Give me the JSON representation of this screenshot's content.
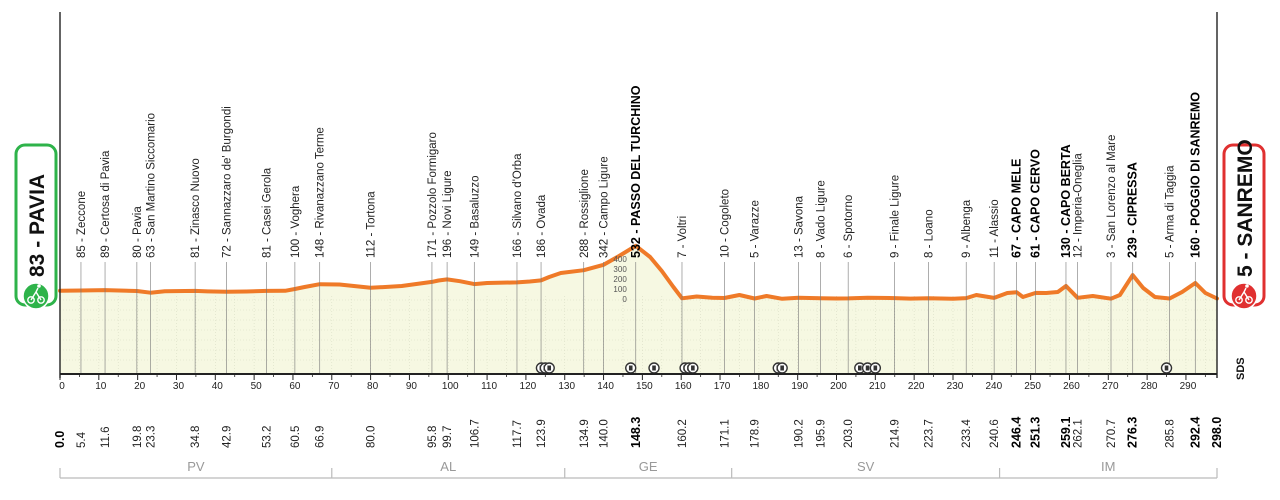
{
  "chart_data": {
    "type": "area",
    "title": "",
    "xlabel": "",
    "ylabel": "",
    "xlim": [
      0,
      298
    ],
    "colors": {
      "line": "#ef7a28",
      "fill": "#f6f8e2",
      "start": "#2eb34a",
      "finish": "#e03030"
    },
    "profile": [
      [
        0,
        83
      ],
      [
        5.4,
        85
      ],
      [
        11.6,
        89
      ],
      [
        19.8,
        80
      ],
      [
        23.3,
        63
      ],
      [
        27,
        78
      ],
      [
        34.8,
        81
      ],
      [
        38,
        76
      ],
      [
        42.9,
        72
      ],
      [
        48,
        75
      ],
      [
        53.2,
        81
      ],
      [
        58,
        82
      ],
      [
        60.5,
        100
      ],
      [
        63,
        120
      ],
      [
        66.9,
        148
      ],
      [
        72,
        145
      ],
      [
        80,
        112
      ],
      [
        88,
        130
      ],
      [
        95.8,
        171
      ],
      [
        97.5,
        185
      ],
      [
        99.7,
        196
      ],
      [
        103,
        178
      ],
      [
        106.7,
        149
      ],
      [
        110,
        160
      ],
      [
        117.7,
        166
      ],
      [
        121,
        175
      ],
      [
        123.9,
        186
      ],
      [
        126,
        220
      ],
      [
        129,
        260
      ],
      [
        134.9,
        288
      ],
      [
        140,
        342
      ],
      [
        144,
        430
      ],
      [
        148.3,
        532
      ],
      [
        152,
        420
      ],
      [
        155,
        280
      ],
      [
        158,
        120
      ],
      [
        160.2,
        7
      ],
      [
        164,
        25
      ],
      [
        168,
        12
      ],
      [
        171.1,
        10
      ],
      [
        175,
        40
      ],
      [
        178.9,
        5
      ],
      [
        182,
        30
      ],
      [
        186,
        2
      ],
      [
        190.2,
        13
      ],
      [
        195.9,
        8
      ],
      [
        200,
        5
      ],
      [
        203,
        6
      ],
      [
        208,
        12
      ],
      [
        214.9,
        9
      ],
      [
        219,
        4
      ],
      [
        223.7,
        8
      ],
      [
        230,
        3
      ],
      [
        233.4,
        9
      ],
      [
        236,
        40
      ],
      [
        240.6,
        11
      ],
      [
        244,
        60
      ],
      [
        246.4,
        67
      ],
      [
        248,
        20
      ],
      [
        251.3,
        61
      ],
      [
        254,
        60
      ],
      [
        257,
        70
      ],
      [
        259.1,
        130
      ],
      [
        262.1,
        12
      ],
      [
        266,
        30
      ],
      [
        270.7,
        3
      ],
      [
        273,
        40
      ],
      [
        276.3,
        239
      ],
      [
        279,
        110
      ],
      [
        282,
        20
      ],
      [
        285.8,
        5
      ],
      [
        289,
        70
      ],
      [
        292.4,
        160
      ],
      [
        295,
        60
      ],
      [
        298,
        5
      ]
    ],
    "start": {
      "label": "83 - PAVIA"
    },
    "finish": {
      "label": "5 - SANREMO"
    },
    "places": [
      {
        "km": 5.4,
        "label": "85 - Zeccone"
      },
      {
        "km": 11.6,
        "label": "89 - Certosa di Pavia"
      },
      {
        "km": 19.8,
        "label": "80 - Pavia"
      },
      {
        "km": 23.3,
        "label": "63 - San Martino Siccomario"
      },
      {
        "km": 34.8,
        "label": "81 - Zinasco Nuovo"
      },
      {
        "km": 42.9,
        "label": "72 - Sannazzaro de' Burgondi"
      },
      {
        "km": 53.2,
        "label": "81 - Casei Gerola"
      },
      {
        "km": 60.5,
        "label": "100 - Voghera"
      },
      {
        "km": 66.9,
        "label": "148 - Rivanazzano Terme"
      },
      {
        "km": 80.0,
        "label": "112 - Tortona"
      },
      {
        "km": 95.8,
        "label": "171 - Pozzolo Formigaro"
      },
      {
        "km": 99.7,
        "label": "196 - Novi Ligure"
      },
      {
        "km": 106.7,
        "label": "149 - Basaluzzo"
      },
      {
        "km": 117.7,
        "label": "166 - Silvano d'Orba"
      },
      {
        "km": 123.9,
        "label": "186 - Ovada"
      },
      {
        "km": 134.9,
        "label": "288 - Rossiglione"
      },
      {
        "km": 140.0,
        "label": "342 - Campo Ligure"
      },
      {
        "km": 148.3,
        "label": "532 - PASSO DEL TURCHINO",
        "summit": true
      },
      {
        "km": 160.2,
        "label": "7 - Voltri"
      },
      {
        "km": 171.1,
        "label": "10 - Cogoleto"
      },
      {
        "km": 178.9,
        "label": "5 - Varazze"
      },
      {
        "km": 190.2,
        "label": "13 - Savona"
      },
      {
        "km": 195.9,
        "label": "8 - Vado Ligure"
      },
      {
        "km": 203.0,
        "label": "6 - Spotorno"
      },
      {
        "km": 214.9,
        "label": "9 - Finale Ligure"
      },
      {
        "km": 223.7,
        "label": "8 - Loano"
      },
      {
        "km": 233.4,
        "label": "9 - Albenga"
      },
      {
        "km": 240.6,
        "label": "11 - Alassio"
      },
      {
        "km": 246.4,
        "label": "67 - CAPO MELE",
        "summit": true
      },
      {
        "km": 251.3,
        "label": "61 - CAPO CERVO",
        "summit": true
      },
      {
        "km": 259.1,
        "label": "130 - CAPO BERTA",
        "summit": true
      },
      {
        "km": 262.1,
        "label": "12 - Imperia-Oneglia"
      },
      {
        "km": 270.7,
        "label": "3 - San Lorenzo al Mare"
      },
      {
        "km": 276.3,
        "label": "239 - CIPRESSA",
        "summit": true
      },
      {
        "km": 285.8,
        "label": "5 - Arma di Taggia"
      },
      {
        "km": 292.4,
        "label": "160 - POGGIO DI SANREMO",
        "summit": true
      }
    ],
    "km_labels": [
      {
        "km": 0,
        "label": "0.0",
        "bold": true
      },
      {
        "km": 5.4,
        "label": "5.4"
      },
      {
        "km": 11.6,
        "label": "11.6"
      },
      {
        "km": 19.8,
        "label": "19.8"
      },
      {
        "km": 23.3,
        "label": "23.3"
      },
      {
        "km": 34.8,
        "label": "34.8"
      },
      {
        "km": 42.9,
        "label": "42.9"
      },
      {
        "km": 53.2,
        "label": "53.2"
      },
      {
        "km": 60.5,
        "label": "60.5"
      },
      {
        "km": 66.9,
        "label": "66.9"
      },
      {
        "km": 80.0,
        "label": "80.0"
      },
      {
        "km": 95.8,
        "label": "95.8"
      },
      {
        "km": 99.7,
        "label": "99.7"
      },
      {
        "km": 106.7,
        "label": "106.7"
      },
      {
        "km": 117.7,
        "label": "117.7"
      },
      {
        "km": 123.9,
        "label": "123.9"
      },
      {
        "km": 134.9,
        "label": "134.9"
      },
      {
        "km": 140.0,
        "label": "140.0"
      },
      {
        "km": 148.3,
        "label": "148.3",
        "bold": true
      },
      {
        "km": 160.2,
        "label": "160.2"
      },
      {
        "km": 171.1,
        "label": "171.1"
      },
      {
        "km": 178.9,
        "label": "178.9"
      },
      {
        "km": 190.2,
        "label": "190.2"
      },
      {
        "km": 195.9,
        "label": "195.9"
      },
      {
        "km": 203.0,
        "label": "203.0"
      },
      {
        "km": 214.9,
        "label": "214.9"
      },
      {
        "km": 223.7,
        "label": "223.7"
      },
      {
        "km": 233.4,
        "label": "233.4"
      },
      {
        "km": 240.6,
        "label": "240.6"
      },
      {
        "km": 246.4,
        "label": "246.4",
        "bold": true
      },
      {
        "km": 251.3,
        "label": "251.3",
        "bold": true
      },
      {
        "km": 259.1,
        "label": "259.1",
        "bold": true
      },
      {
        "km": 262.1,
        "label": "262.1"
      },
      {
        "km": 270.7,
        "label": "270.7"
      },
      {
        "km": 276.3,
        "label": "276.3",
        "bold": true
      },
      {
        "km": 285.8,
        "label": "285.8"
      },
      {
        "km": 292.4,
        "label": "292.4",
        "bold": true
      },
      {
        "km": 298.0,
        "label": "298.0",
        "bold": true
      }
    ],
    "axis_ticks": [
      0,
      10,
      20,
      30,
      40,
      50,
      60,
      70,
      80,
      90,
      100,
      110,
      120,
      130,
      140,
      150,
      160,
      170,
      180,
      190,
      200,
      210,
      220,
      230,
      240,
      250,
      260,
      270,
      280,
      290
    ],
    "elevation_scale": [
      "400",
      "300",
      "200",
      "100",
      "0"
    ],
    "provinces": [
      {
        "label": "PV",
        "from": 0,
        "to": 70
      },
      {
        "label": "AL",
        "from": 70,
        "to": 130
      },
      {
        "label": "GE",
        "from": 130,
        "to": 173
      },
      {
        "label": "SV",
        "from": 173,
        "to": 242
      },
      {
        "label": "IM",
        "from": 242,
        "to": 298
      }
    ],
    "service_icons": [
      124,
      125,
      126,
      147,
      153,
      161,
      162,
      163,
      185,
      186,
      206,
      208,
      210,
      285
    ],
    "logo": "SDS"
  }
}
